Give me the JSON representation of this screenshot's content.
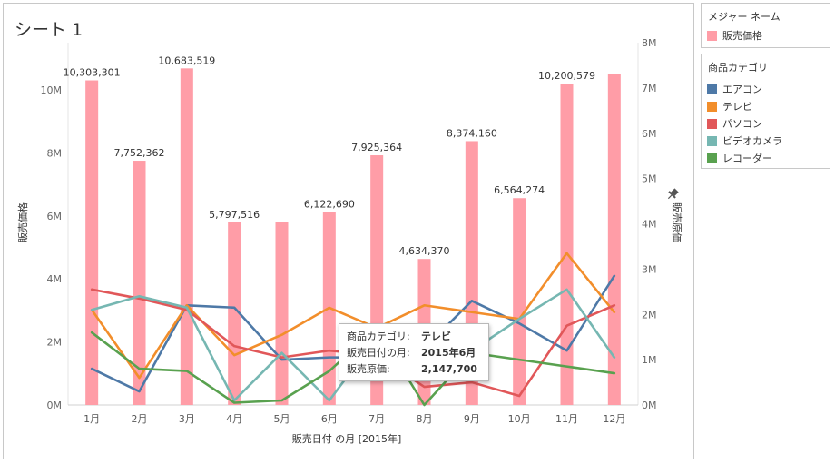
{
  "sheet": {
    "title": "シート 1"
  },
  "legend_measures": {
    "title": "メジャー ネーム",
    "items": [
      {
        "label": "販売価格",
        "color": "#ff9da7"
      }
    ]
  },
  "legend_categories": {
    "title": "商品カテゴリ",
    "items": [
      {
        "label": "エアコン",
        "color": "#4e79a7"
      },
      {
        "label": "テレビ",
        "color": "#f28e2b"
      },
      {
        "label": "パソコン",
        "color": "#e15759"
      },
      {
        "label": "ビデオカメラ",
        "color": "#76b7b2"
      },
      {
        "label": "レコーダー",
        "color": "#59a14f"
      }
    ]
  },
  "tooltip": {
    "rows": [
      {
        "key": "商品カテゴリ:",
        "value": "テレビ"
      },
      {
        "key": "販売日付の月:",
        "value": "2015年6月"
      },
      {
        "key": "販売原価:",
        "value": "2,147,700"
      }
    ]
  },
  "chart_data": {
    "type": "bar",
    "xlabel": "販売日付 の月 [2015年]",
    "ylabel": "販売価格",
    "y2label": "販売原価",
    "categories": [
      "1月",
      "2月",
      "3月",
      "4月",
      "5月",
      "6月",
      "7月",
      "8月",
      "9月",
      "10月",
      "11月",
      "12月"
    ],
    "ylim": [
      0,
      11500000
    ],
    "y2lim": [
      0,
      8000000
    ],
    "yticks": [
      0,
      2000000,
      4000000,
      6000000,
      8000000,
      10000000
    ],
    "ytick_labels": [
      "0M",
      "2M",
      "4M",
      "6M",
      "8M",
      "10M"
    ],
    "y2ticks": [
      0,
      1000000,
      2000000,
      3000000,
      4000000,
      5000000,
      6000000,
      7000000,
      8000000
    ],
    "y2tick_labels": [
      "0M",
      "1M",
      "2M",
      "3M",
      "4M",
      "5M",
      "6M",
      "7M",
      "8M"
    ],
    "bar_series": {
      "name": "販売価格",
      "color": "#ff9da7",
      "values": [
        10303301,
        7752362,
        10683519,
        5797516,
        5800000,
        6122690,
        7925364,
        4634370,
        8374160,
        6564274,
        10200579,
        10500000
      ],
      "labels": [
        "10,303,301",
        "7,752,362",
        "10,683,519",
        "5,797,516",
        "",
        "6,122,690",
        "7,925,364",
        "4,634,370",
        "8,374,160",
        "6,564,274",
        "10,200,579",
        ""
      ]
    },
    "line_series": [
      {
        "name": "エアコン",
        "color": "#4e79a7",
        "axis": "y2",
        "values": [
          800000,
          300000,
          2200000,
          2150000,
          1000000,
          1050000,
          1050000,
          1250000,
          2300000,
          1800000,
          1200000,
          2850000
        ]
      },
      {
        "name": "テレビ",
        "color": "#f28e2b",
        "axis": "y2",
        "values": [
          2100000,
          600000,
          2200000,
          1100000,
          1550000,
          2147700,
          1700000,
          2200000,
          2050000,
          1900000,
          3350000,
          2050000
        ]
      },
      {
        "name": "パソコン",
        "color": "#e15759",
        "axis": "y2",
        "values": [
          2550000,
          2350000,
          2100000,
          1300000,
          1050000,
          1200000,
          1100000,
          400000,
          500000,
          200000,
          1750000,
          2200000
        ]
      },
      {
        "name": "ビデオカメラ",
        "color": "#76b7b2",
        "axis": "y2",
        "values": [
          2100000,
          2400000,
          2150000,
          100000,
          1150000,
          100000,
          1500000,
          700000,
          1200000,
          1900000,
          2550000,
          1050000
        ]
      },
      {
        "name": "レコーダー",
        "color": "#59a14f",
        "axis": "y2",
        "values": [
          1600000,
          800000,
          750000,
          50000,
          100000,
          750000,
          1700000,
          0,
          1150000,
          1000000,
          850000,
          700000
        ]
      }
    ]
  }
}
